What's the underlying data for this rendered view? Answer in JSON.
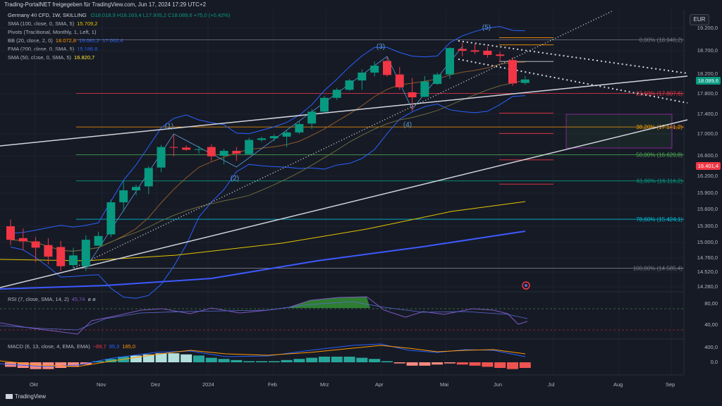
{
  "header": {
    "publisher": "Trading-PortalNET freigegeben für TradingView.com, Jun 17, 2024 17:29 UTC+2"
  },
  "legend": {
    "main": "Germany 40 CFD, 1W, SKILLING",
    "ohlc": "O18.018,9 H18.163,4 L17.985,2 C18.089,6 +75,0 (+0,42%)",
    "sma100": "SMA (100, close, 0, SMA, 5)",
    "sma100_val": "15.709,2",
    "pivots": "Pivots (Traditional, Monthly, 1, Left, 1)",
    "bb": "BB (20, close, 2, 0)",
    "bb_basis": "18.072,8",
    "bb_upper": "19.081,2",
    "bb_lower": "17.062,4",
    "ema200": "EMA (200, close, 0, SMA, 5)",
    "ema200_val": "15.186,8",
    "sma50": "SMA (50, close, 0, SMA, 5)",
    "sma50_val": "16.820,7"
  },
  "currency": "EUR",
  "price_axis": [
    "19.200,0",
    "18.700,0",
    "18.200,0",
    "17.800,0",
    "17.400,0",
    "17.000,0",
    "16.600,0",
    "16.200,0",
    "15.900,0",
    "15.600,0",
    "15.300,0",
    "15.000,0",
    "14.760,0",
    "14.520,0",
    "14.280,0"
  ],
  "price_tags": {
    "current": "18.089,6",
    "current_color": "#089981",
    "other": "16.401,4",
    "other_color": "#f23645"
  },
  "fib_levels": [
    {
      "label": "0,00% (18.940,2)",
      "price": 18940.2,
      "color": "#787b86"
    },
    {
      "label": "23,60% (17.807,6)",
      "price": 17807.6,
      "color": "#f23645"
    },
    {
      "label": "38,20% (17.141,2)",
      "price": 17141.2,
      "color": "#ff9800"
    },
    {
      "label": "50,00% (16.620,8)",
      "price": 16620.8,
      "color": "#4caf50"
    },
    {
      "label": "61,80% (16.116,2)",
      "price": 16116.2,
      "color": "#089981"
    },
    {
      "label": "78,60% (15.424,1)",
      "price": 15424.1,
      "color": "#00bcd4"
    },
    {
      "label": "100,00% (14.585,4)",
      "price": 14585.4,
      "color": "#787b86"
    }
  ],
  "waves": [
    "(1)",
    "(2)",
    "(3)",
    "(4)",
    "(5)"
  ],
  "rsi": {
    "label": "RSI (7, close, SMA, 14, 2)",
    "value": "45,74",
    "extra": "ø ø",
    "axis": [
      "80,00",
      "40,00"
    ]
  },
  "macd": {
    "label": "MACD (6, 13, close, 4, EMA, EMA)",
    "v1": "−89,7",
    "v2": "95,3",
    "v3": "185,0",
    "axis": [
      "400,0",
      "0,0"
    ]
  },
  "time_axis": [
    "Okt",
    "Nov",
    "Dez",
    "2024",
    "Feb",
    "Mrz",
    "Apr",
    "Mai",
    "Jun",
    "Jul",
    "Aug",
    "Sep"
  ],
  "brand": "TradingView",
  "colors": {
    "up": "#089981",
    "down": "#f23645",
    "bg": "#161a25"
  },
  "chart_data": {
    "type": "candlestick",
    "title": "Germany 40 CFD, 1W, SKILLING",
    "ylim": [
      14200,
      19350
    ],
    "candles": [
      {
        "o": 15300,
        "h": 15420,
        "l": 14960,
        "c": 15050
      },
      {
        "o": 15080,
        "h": 15260,
        "l": 14880,
        "c": 15020
      },
      {
        "o": 15020,
        "h": 15100,
        "l": 14690,
        "c": 14920
      },
      {
        "o": 14960,
        "h": 15080,
        "l": 14650,
        "c": 14780
      },
      {
        "o": 14930,
        "h": 15030,
        "l": 14540,
        "c": 14620
      },
      {
        "o": 14640,
        "h": 14920,
        "l": 14580,
        "c": 14800
      },
      {
        "o": 14620,
        "h": 15130,
        "l": 14540,
        "c": 15050
      },
      {
        "o": 14950,
        "h": 15200,
        "l": 14960,
        "c": 15120
      },
      {
        "o": 15150,
        "h": 15780,
        "l": 15100,
        "c": 15730
      },
      {
        "o": 15730,
        "h": 16110,
        "l": 15560,
        "c": 15950
      },
      {
        "o": 15950,
        "h": 16050,
        "l": 15860,
        "c": 16010
      },
      {
        "o": 16020,
        "h": 16400,
        "l": 15880,
        "c": 16360
      },
      {
        "o": 16370,
        "h": 16800,
        "l": 16280,
        "c": 16760
      },
      {
        "o": 16760,
        "h": 16990,
        "l": 16590,
        "c": 16750
      },
      {
        "o": 16750,
        "h": 16790,
        "l": 16690,
        "c": 16710
      },
      {
        "o": 16710,
        "h": 16780,
        "l": 16640,
        "c": 16720
      },
      {
        "o": 16760,
        "h": 16810,
        "l": 16500,
        "c": 16590
      },
      {
        "o": 16600,
        "h": 16730,
        "l": 16430,
        "c": 16690
      },
      {
        "o": 16690,
        "h": 16760,
        "l": 16500,
        "c": 16640
      },
      {
        "o": 16630,
        "h": 16930,
        "l": 16620,
        "c": 16890
      },
      {
        "o": 16890,
        "h": 16950,
        "l": 16860,
        "c": 16920
      },
      {
        "o": 16920,
        "h": 16990,
        "l": 16870,
        "c": 16960
      },
      {
        "o": 16950,
        "h": 17080,
        "l": 16760,
        "c": 17030
      },
      {
        "o": 17030,
        "h": 17260,
        "l": 17000,
        "c": 17200
      },
      {
        "o": 17210,
        "h": 17500,
        "l": 17100,
        "c": 17450
      },
      {
        "o": 17450,
        "h": 17760,
        "l": 17420,
        "c": 17720
      },
      {
        "o": 17720,
        "h": 17920,
        "l": 17680,
        "c": 17880
      },
      {
        "o": 17880,
        "h": 18100,
        "l": 17860,
        "c": 18070
      },
      {
        "o": 18070,
        "h": 18300,
        "l": 17880,
        "c": 18230
      },
      {
        "o": 18230,
        "h": 18470,
        "l": 18150,
        "c": 18380
      },
      {
        "o": 18480,
        "h": 18560,
        "l": 18150,
        "c": 18180
      },
      {
        "o": 18190,
        "h": 18350,
        "l": 17880,
        "c": 17930
      },
      {
        "o": 17830,
        "h": 18120,
        "l": 17460,
        "c": 17730
      },
      {
        "o": 17740,
        "h": 18160,
        "l": 17730,
        "c": 18050
      },
      {
        "o": 18000,
        "h": 18230,
        "l": 17980,
        "c": 18190
      },
      {
        "o": 18190,
        "h": 18780,
        "l": 18100,
        "c": 18760
      },
      {
        "o": 18740,
        "h": 18880,
        "l": 18580,
        "c": 18700
      },
      {
        "o": 18710,
        "h": 18850,
        "l": 18630,
        "c": 18680
      },
      {
        "o": 18700,
        "h": 18790,
        "l": 18550,
        "c": 18610
      },
      {
        "o": 18620,
        "h": 18680,
        "l": 18460,
        "c": 18590
      },
      {
        "o": 18500,
        "h": 18560,
        "l": 17960,
        "c": 18010
      },
      {
        "o": 18018.9,
        "h": 18163.4,
        "l": 17985.2,
        "c": 18089.6
      }
    ]
  }
}
